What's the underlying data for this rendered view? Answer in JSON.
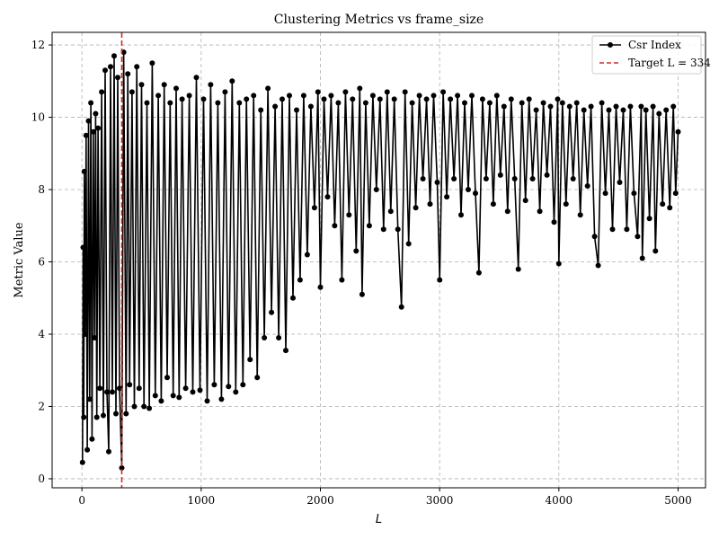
{
  "chart_data": {
    "type": "line",
    "title": "Clustering Metrics vs frame_size",
    "xlabel": "L",
    "ylabel": "Metric Value",
    "xlim": [
      -250,
      5230
    ],
    "ylim": [
      -0.25,
      12.35
    ],
    "xticks": [
      0,
      1000,
      2000,
      3000,
      4000,
      5000
    ],
    "yticks": [
      0,
      2,
      4,
      6,
      8,
      10,
      12
    ],
    "grid": true,
    "legend_position": "top-right",
    "target": {
      "x": 334,
      "label": "Target L = 334",
      "color": "#d62728"
    },
    "series": [
      {
        "name": "Csr Index",
        "color": "#000000",
        "marker": "circle",
        "points": [
          [
            5,
            0.45
          ],
          [
            10,
            6.4
          ],
          [
            15,
            1.7
          ],
          [
            20,
            8.5
          ],
          [
            28,
            4.0
          ],
          [
            35,
            9.5
          ],
          [
            45,
            0.8
          ],
          [
            55,
            9.9
          ],
          [
            65,
            2.2
          ],
          [
            75,
            10.4
          ],
          [
            85,
            1.1
          ],
          [
            95,
            9.6
          ],
          [
            105,
            3.9
          ],
          [
            115,
            10.1
          ],
          [
            125,
            1.7
          ],
          [
            135,
            9.7
          ],
          [
            150,
            2.5
          ],
          [
            165,
            10.7
          ],
          [
            180,
            1.75
          ],
          [
            195,
            11.3
          ],
          [
            210,
            2.4
          ],
          [
            225,
            0.75
          ],
          [
            240,
            11.4
          ],
          [
            255,
            2.4
          ],
          [
            270,
            11.7
          ],
          [
            285,
            1.8
          ],
          [
            300,
            11.1
          ],
          [
            315,
            2.5
          ],
          [
            334,
            0.3
          ],
          [
            350,
            11.8
          ],
          [
            370,
            1.8
          ],
          [
            385,
            11.2
          ],
          [
            400,
            2.6
          ],
          [
            420,
            10.7
          ],
          [
            440,
            2.0
          ],
          [
            460,
            11.4
          ],
          [
            480,
            2.5
          ],
          [
            500,
            10.9
          ],
          [
            520,
            2.0
          ],
          [
            545,
            10.4
          ],
          [
            565,
            1.95
          ],
          [
            590,
            11.5
          ],
          [
            615,
            2.3
          ],
          [
            640,
            10.6
          ],
          [
            665,
            2.15
          ],
          [
            690,
            10.9
          ],
          [
            715,
            2.8
          ],
          [
            740,
            10.4
          ],
          [
            765,
            2.3
          ],
          [
            790,
            10.8
          ],
          [
            815,
            2.25
          ],
          [
            840,
            10.5
          ],
          [
            870,
            2.5
          ],
          [
            900,
            10.6
          ],
          [
            930,
            2.4
          ],
          [
            960,
            11.1
          ],
          [
            990,
            2.45
          ],
          [
            1020,
            10.5
          ],
          [
            1050,
            2.15
          ],
          [
            1080,
            10.9
          ],
          [
            1110,
            2.6
          ],
          [
            1140,
            10.4
          ],
          [
            1170,
            2.2
          ],
          [
            1200,
            10.7
          ],
          [
            1230,
            2.55
          ],
          [
            1260,
            11.0
          ],
          [
            1290,
            2.4
          ],
          [
            1320,
            10.4
          ],
          [
            1350,
            2.6
          ],
          [
            1380,
            10.5
          ],
          [
            1410,
            3.3
          ],
          [
            1440,
            10.6
          ],
          [
            1470,
            2.8
          ],
          [
            1500,
            10.2
          ],
          [
            1530,
            3.9
          ],
          [
            1560,
            10.8
          ],
          [
            1590,
            4.6
          ],
          [
            1620,
            10.3
          ],
          [
            1650,
            3.9
          ],
          [
            1680,
            10.5
          ],
          [
            1710,
            3.55
          ],
          [
            1740,
            10.6
          ],
          [
            1770,
            5.0
          ],
          [
            1800,
            10.2
          ],
          [
            1830,
            5.5
          ],
          [
            1860,
            10.6
          ],
          [
            1890,
            6.2
          ],
          [
            1920,
            10.3
          ],
          [
            1950,
            7.5
          ],
          [
            1980,
            10.7
          ],
          [
            2000,
            5.3
          ],
          [
            2030,
            10.5
          ],
          [
            2060,
            7.8
          ],
          [
            2090,
            10.6
          ],
          [
            2120,
            7.0
          ],
          [
            2150,
            10.4
          ],
          [
            2180,
            5.5
          ],
          [
            2210,
            10.7
          ],
          [
            2240,
            7.3
          ],
          [
            2270,
            10.5
          ],
          [
            2300,
            6.3
          ],
          [
            2330,
            10.8
          ],
          [
            2350,
            5.1
          ],
          [
            2380,
            10.4
          ],
          [
            2410,
            7.0
          ],
          [
            2440,
            10.6
          ],
          [
            2470,
            8.0
          ],
          [
            2500,
            10.5
          ],
          [
            2530,
            6.9
          ],
          [
            2560,
            10.7
          ],
          [
            2590,
            7.4
          ],
          [
            2620,
            10.5
          ],
          [
            2650,
            6.9
          ],
          [
            2680,
            4.75
          ],
          [
            2710,
            10.7
          ],
          [
            2740,
            6.5
          ],
          [
            2770,
            10.4
          ],
          [
            2800,
            7.5
          ],
          [
            2830,
            10.6
          ],
          [
            2860,
            8.3
          ],
          [
            2890,
            10.5
          ],
          [
            2920,
            7.6
          ],
          [
            2950,
            10.6
          ],
          [
            2980,
            8.2
          ],
          [
            3000,
            5.5
          ],
          [
            3030,
            10.7
          ],
          [
            3060,
            7.8
          ],
          [
            3090,
            10.5
          ],
          [
            3120,
            8.3
          ],
          [
            3150,
            10.6
          ],
          [
            3180,
            7.3
          ],
          [
            3210,
            10.4
          ],
          [
            3240,
            8.0
          ],
          [
            3270,
            10.6
          ],
          [
            3300,
            7.9
          ],
          [
            3330,
            5.7
          ],
          [
            3360,
            10.5
          ],
          [
            3390,
            8.3
          ],
          [
            3420,
            10.4
          ],
          [
            3450,
            7.6
          ],
          [
            3480,
            10.6
          ],
          [
            3510,
            8.4
          ],
          [
            3540,
            10.3
          ],
          [
            3570,
            7.4
          ],
          [
            3600,
            10.5
          ],
          [
            3630,
            8.3
          ],
          [
            3660,
            5.8
          ],
          [
            3690,
            10.4
          ],
          [
            3720,
            7.7
          ],
          [
            3750,
            10.5
          ],
          [
            3780,
            8.3
          ],
          [
            3810,
            10.2
          ],
          [
            3840,
            7.4
          ],
          [
            3870,
            10.4
          ],
          [
            3900,
            8.4
          ],
          [
            3930,
            10.3
          ],
          [
            3960,
            7.1
          ],
          [
            3990,
            10.5
          ],
          [
            4000,
            5.95
          ],
          [
            4030,
            10.4
          ],
          [
            4060,
            7.6
          ],
          [
            4090,
            10.3
          ],
          [
            4120,
            8.3
          ],
          [
            4150,
            10.4
          ],
          [
            4180,
            7.3
          ],
          [
            4210,
            10.2
          ],
          [
            4240,
            8.1
          ],
          [
            4270,
            10.3
          ],
          [
            4300,
            6.7
          ],
          [
            4330,
            5.9
          ],
          [
            4360,
            10.4
          ],
          [
            4390,
            7.9
          ],
          [
            4420,
            10.2
          ],
          [
            4450,
            6.9
          ],
          [
            4480,
            10.3
          ],
          [
            4510,
            8.2
          ],
          [
            4540,
            10.2
          ],
          [
            4570,
            6.9
          ],
          [
            4600,
            10.3
          ],
          [
            4630,
            7.9
          ],
          [
            4660,
            6.7
          ],
          [
            4690,
            10.3
          ],
          [
            4700,
            6.1
          ],
          [
            4730,
            10.2
          ],
          [
            4760,
            7.2
          ],
          [
            4790,
            10.3
          ],
          [
            4810,
            6.3
          ],
          [
            4840,
            10.1
          ],
          [
            4870,
            7.6
          ],
          [
            4900,
            10.2
          ],
          [
            4930,
            7.5
          ],
          [
            4960,
            10.3
          ],
          [
            4980,
            7.9
          ],
          [
            5000,
            9.6
          ]
        ]
      }
    ]
  }
}
